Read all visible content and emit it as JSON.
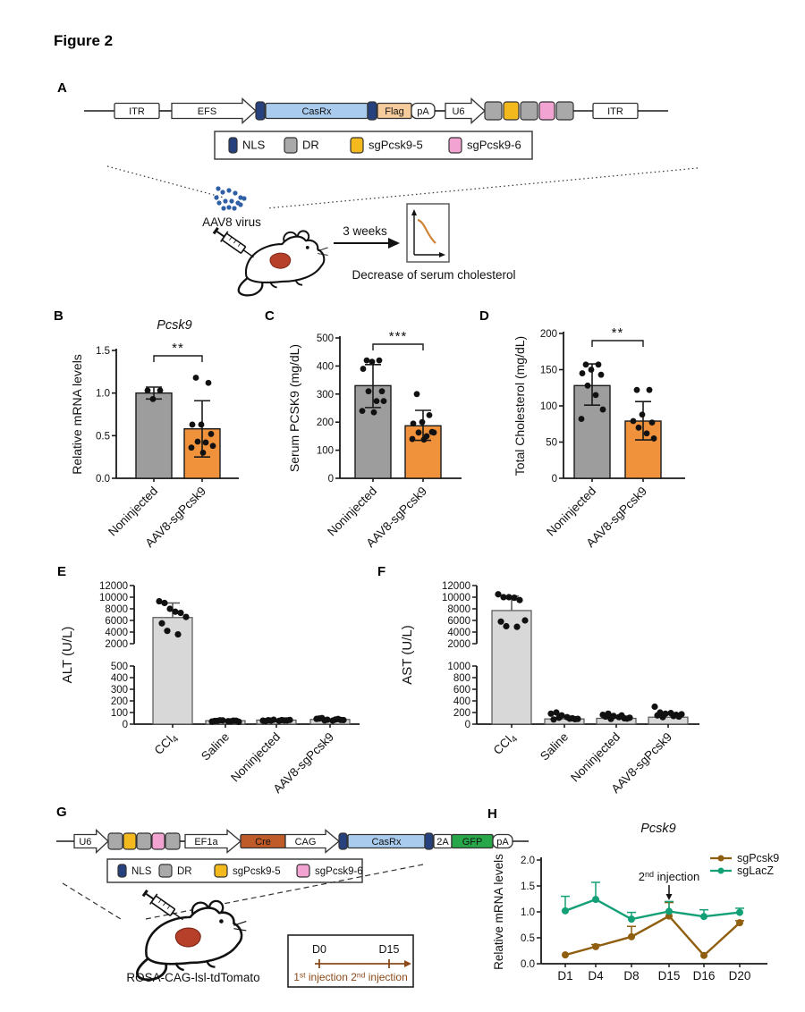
{
  "figure_title": "Figure 2",
  "colors": {
    "axis": "#1a1a1a",
    "gray": "#9d9d9d",
    "orange": "#f0923b",
    "lightgray": "#d8d8d8",
    "nls": "#27407e",
    "casrx": "#a9cbed",
    "flag": "#f6cc9d",
    "dr": "#a9a9a9",
    "sg5": "#f4b91c",
    "sg6": "#f2a3d2",
    "cre": "#bf5b28",
    "gfp": "#28a74a",
    "virus": "#2f5fa5",
    "brown": "#8f5e0e",
    "teal": "#14a077",
    "timeline": "#8c4a1a",
    "white": "#ffffff",
    "liver": "#b6402a",
    "curve": "#d08436"
  },
  "panels": {
    "A": {
      "label": "A",
      "virus_label": "AAV8 virus",
      "arrow_label": "3 weeks",
      "caption": "Decrease of serum cholesterol",
      "construct": [
        {
          "k": "wire",
          "w": 34
        },
        {
          "k": "box",
          "label": "ITR",
          "w": 50,
          "f": "white"
        },
        {
          "k": "wire",
          "w": 14
        },
        {
          "k": "arrow",
          "label": "EFS",
          "w": 94
        },
        {
          "k": "chip",
          "f": "nls",
          "w": 10,
          "g": 1
        },
        {
          "k": "box",
          "label": "CasRx",
          "w": 114,
          "f": "casrx"
        },
        {
          "k": "chip",
          "f": "nls",
          "w": 10,
          "g": 1
        },
        {
          "k": "box",
          "label": "Flag",
          "w": 38,
          "f": "flag"
        },
        {
          "k": "pill",
          "label": "pA",
          "w": 26,
          "f": "white"
        },
        {
          "k": "wire",
          "w": 12
        },
        {
          "k": "arrow",
          "label": "U6",
          "w": 44
        },
        {
          "k": "chip",
          "f": "dr",
          "w": 19,
          "g": 2
        },
        {
          "k": "chip",
          "f": "sg5",
          "w": 17,
          "g": 2
        },
        {
          "k": "chip",
          "f": "dr",
          "w": 19,
          "g": 2
        },
        {
          "k": "chip",
          "f": "sg6",
          "w": 17,
          "g": 2
        },
        {
          "k": "chip",
          "f": "dr",
          "w": 19
        },
        {
          "k": "wire",
          "w": 22
        },
        {
          "k": "box",
          "label": "ITR",
          "w": 50,
          "f": "white"
        },
        {
          "k": "wire",
          "w": 34
        }
      ],
      "legend": [
        {
          "label": "NLS",
          "f": "nls"
        },
        {
          "label": "DR",
          "f": "dr"
        },
        {
          "label": "sgPcsk9-5",
          "f": "sg5"
        },
        {
          "label": "sgPcsk9-6",
          "f": "sg6"
        }
      ]
    },
    "B": {
      "label": "B"
    },
    "C": {
      "label": "C"
    },
    "D": {
      "label": "D"
    },
    "E": {
      "label": "E"
    },
    "F": {
      "label": "F"
    },
    "G": {
      "label": "G",
      "mouse_label": "ROSA-CAG-lsl-tdTomato",
      "construct": [
        {
          "k": "wire",
          "w": 20
        },
        {
          "k": "arrow",
          "label": "U6",
          "w": 38
        },
        {
          "k": "chip",
          "f": "dr",
          "w": 16,
          "g": 1
        },
        {
          "k": "chip",
          "f": "sg5",
          "w": 14,
          "g": 1
        },
        {
          "k": "chip",
          "f": "dr",
          "w": 16,
          "g": 1
        },
        {
          "k": "chip",
          "f": "sg6",
          "w": 14,
          "g": 1
        },
        {
          "k": "chip",
          "f": "dr",
          "w": 16
        },
        {
          "k": "wire",
          "w": 6
        },
        {
          "k": "arrow",
          "label": "EF1a",
          "w": 62
        },
        {
          "k": "box",
          "label": "Cre",
          "w": 50,
          "f": "cre",
          "tc": "w"
        },
        {
          "k": "arrow",
          "label": "CAG",
          "w": 60
        },
        {
          "k": "chip",
          "f": "nls",
          "w": 9,
          "g": 1
        },
        {
          "k": "box",
          "label": "CasRx",
          "w": 86,
          "f": "casrx"
        },
        {
          "k": "chip",
          "f": "nls",
          "w": 9,
          "g": 1
        },
        {
          "k": "box",
          "label": "2A",
          "w": 20,
          "f": "white"
        },
        {
          "k": "box",
          "label": "GFP",
          "w": 46,
          "f": "gfp"
        },
        {
          "k": "pill",
          "label": "pA",
          "w": 22,
          "f": "white"
        },
        {
          "k": "wire",
          "w": 18
        }
      ],
      "legend": [
        {
          "label": "NLS",
          "f": "nls"
        },
        {
          "label": "DR",
          "f": "dr"
        },
        {
          "label": "sgPcsk9-5",
          "f": "sg5"
        },
        {
          "label": "sgPcsk9-6",
          "f": "sg6"
        }
      ],
      "timeline": {
        "t0": "D0",
        "t1": "D15",
        "inj": [
          {
            "base": "1",
            "sup": "st",
            "rest": " injection "
          },
          {
            "base": "2",
            "sup": "nd",
            "rest": " injection"
          }
        ]
      }
    },
    "H": {
      "label": "H"
    }
  },
  "chart_data": [
    {
      "id": "B",
      "type": "bar",
      "title": "Pcsk9",
      "ylabel": "Relative mRNA levels",
      "ylim": [
        0,
        1.5
      ],
      "yticks": [
        0,
        0.5,
        1,
        1.5
      ],
      "ydec": 1,
      "categories": [
        "Noninjected",
        "AAV8-sgPcsk9"
      ],
      "bar_colors": [
        "gray",
        "orange"
      ],
      "values": [
        1.0,
        0.58
      ],
      "err_low": [
        0.93,
        0.25
      ],
      "err_high": [
        1.07,
        0.91
      ],
      "points": [
        [
          1.03,
          1.03,
          0.93
        ],
        [
          1.18,
          1.12,
          0.63,
          0.63,
          0.52,
          0.43,
          0.42,
          0.38,
          0.36,
          0.3
        ]
      ],
      "significance": "**"
    },
    {
      "id": "C",
      "type": "bar",
      "title": "",
      "ylabel": "Serum PCSK9 (mg/dL)",
      "ylim": [
        0,
        500
      ],
      "yticks": [
        0,
        100,
        200,
        300,
        400,
        500
      ],
      "ydec": 0,
      "categories": [
        "Noninjected",
        "AAV8-sgPcsk9"
      ],
      "bar_colors": [
        "gray",
        "orange"
      ],
      "values": [
        330,
        187
      ],
      "err_low": [
        252,
        135
      ],
      "err_high": [
        405,
        242
      ],
      "points": [
        [
          420,
          420,
          415,
          390,
          310,
          310,
          275,
          275,
          240,
          235
        ],
        [
          300,
          225,
          200,
          195,
          165,
          163,
          150,
          163,
          140,
          138
        ]
      ],
      "significance": "***"
    },
    {
      "id": "D",
      "type": "bar",
      "title": "",
      "ylabel": "Total Cholesterol (mg/dL)",
      "ylim": [
        0,
        200
      ],
      "yticks": [
        0,
        50,
        100,
        150,
        200
      ],
      "ydec": 0,
      "categories": [
        "Noninjected",
        "AAV8-sgPcsk9"
      ],
      "bar_colors": [
        "gray",
        "orange"
      ],
      "values": [
        128,
        79
      ],
      "err_low": [
        101,
        53
      ],
      "err_high": [
        158,
        106
      ],
      "points": [
        [
          157,
          157,
          150,
          145,
          143,
          128,
          115,
          95,
          82
        ],
        [
          122,
          122,
          88,
          79,
          77,
          70,
          62,
          55
        ]
      ],
      "significance": "**"
    },
    {
      "id": "E",
      "type": "bar-broken",
      "ylabel": "ALT (U/L)",
      "upper_lim": [
        2000,
        12000
      ],
      "upper_ticks": [
        2000,
        4000,
        6000,
        8000,
        10000,
        12000
      ],
      "lower_lim": [
        0,
        500
      ],
      "lower_ticks": [
        0,
        100,
        200,
        300,
        400,
        500
      ],
      "categories": [
        {
          "base": "CCl",
          "sub": "4"
        },
        {
          "base": "Saline"
        },
        {
          "base": "Noninjected"
        },
        {
          "base": "AAV8-sgPcsk9"
        }
      ],
      "values": [
        6500,
        30,
        35,
        40
      ],
      "err_high": [
        9000,
        null,
        null,
        null
      ],
      "points": [
        [
          9300,
          9000,
          8000,
          7500,
          7300,
          6600,
          5500,
          4200,
          3600
        ],
        [
          22,
          28,
          32,
          25,
          30,
          20,
          27,
          33,
          24,
          29
        ],
        [
          30,
          34,
          38,
          28,
          32,
          36,
          26,
          30,
          35,
          32
        ],
        [
          45,
          52,
          38,
          30,
          44,
          35,
          48,
          32,
          40,
          36
        ]
      ]
    },
    {
      "id": "F",
      "type": "bar-broken",
      "ylabel": "AST (U/L)",
      "upper_lim": [
        2000,
        12000
      ],
      "upper_ticks": [
        2000,
        4000,
        6000,
        8000,
        10000,
        12000
      ],
      "lower_lim": [
        0,
        1000
      ],
      "lower_ticks": [
        0,
        200,
        400,
        600,
        800,
        1000
      ],
      "categories": [
        {
          "base": "CCl",
          "sub": "4"
        },
        {
          "base": "Saline"
        },
        {
          "base": "Noninjected"
        },
        {
          "base": "AAV8-sgPcsk9"
        }
      ],
      "values": [
        7700,
        90,
        100,
        120
      ],
      "err_high": [
        10200,
        null,
        null,
        null
      ],
      "points": [
        [
          10500,
          10000,
          10000,
          9900,
          9500,
          6000,
          5800,
          5000,
          4900
        ],
        [
          180,
          200,
          150,
          120,
          100,
          90,
          80,
          110,
          95,
          85
        ],
        [
          160,
          180,
          140,
          120,
          100,
          110,
          130,
          90,
          150,
          95
        ],
        [
          300,
          200,
          180,
          190,
          160,
          170,
          150,
          120,
          140,
          130
        ]
      ]
    },
    {
      "id": "H",
      "type": "line",
      "title": "Pcsk9",
      "ylabel": "Relative mRNA levels",
      "ylim": [
        0,
        2
      ],
      "yticks": [
        0,
        0.5,
        1,
        1.5,
        2
      ],
      "ydec": 1,
      "x_categories": [
        "D1",
        "D4",
        "D8",
        "D15",
        "D16",
        "D20"
      ],
      "series": [
        {
          "name": "sgPcsk9",
          "color": "brown",
          "values": [
            0.17,
            0.33,
            0.52,
            0.92,
            0.16,
            0.79
          ],
          "err": [
            0.02,
            0.04,
            0.2,
            0.26,
            0.02,
            0.04
          ]
        },
        {
          "name": "sgLacZ",
          "color": "teal",
          "values": [
            1.02,
            1.24,
            0.86,
            1.01,
            0.91,
            0.99
          ],
          "err": [
            0.28,
            0.33,
            0.13,
            0.19,
            0.13,
            0.08
          ]
        }
      ],
      "annotation": {
        "base": "2",
        "sup": "nd",
        "rest": " injection"
      },
      "legend_position": "top-right"
    }
  ]
}
